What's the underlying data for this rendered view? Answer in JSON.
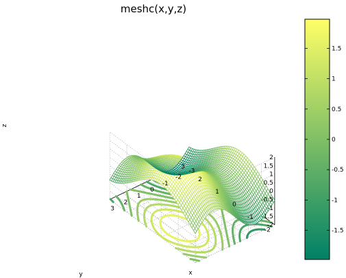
{
  "chart_data": {
    "type": "surface-mesh-contour",
    "title": "meshc(x,y,z)",
    "xlabel": "x",
    "ylabel": "y",
    "zlabel": "z",
    "x_ticks": [
      "-3",
      "-2",
      "-1",
      "0",
      "1",
      "2",
      "3"
    ],
    "y_ticks": [
      "-2",
      "-1",
      "0",
      "1",
      "2",
      "3"
    ],
    "z_ticks": [
      "-2",
      "-1.5",
      "-1",
      "-0.5",
      "0",
      "0.5",
      "1",
      "1.5",
      "2"
    ],
    "xlim": [
      -3,
      3
    ],
    "ylim": [
      -2,
      3
    ],
    "zlim": [
      -2,
      2
    ],
    "colorbar_ticks": [
      "-1.5",
      "-1",
      "-0.5",
      "0",
      "0.5",
      "1",
      "1.5"
    ],
    "colorbar_range": [
      -1.98,
      1.98
    ],
    "colormap": "summer",
    "colormap_low": "#008066",
    "colormap_high": "#ffff66",
    "grid": true,
    "box": "off",
    "contour_levels": [
      -1.6,
      -1.2,
      -0.8,
      -0.4,
      0,
      0.4,
      0.8,
      1.2,
      1.6
    ]
  }
}
